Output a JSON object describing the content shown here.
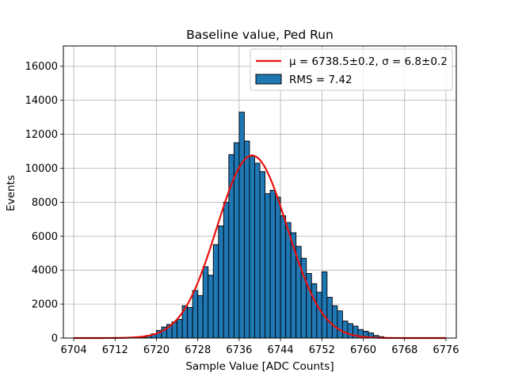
{
  "chart_data": {
    "type": "bar",
    "title": "Baseline value, Ped Run",
    "xlabel": "Sample Value [ADC Counts]",
    "ylabel": "Events",
    "xlim": [
      6702,
      6778
    ],
    "ylim": [
      0,
      17200
    ],
    "xticks": [
      6704,
      6712,
      6720,
      6728,
      6736,
      6744,
      6752,
      6760,
      6768,
      6776
    ],
    "yticks": [
      0,
      2000,
      4000,
      6000,
      8000,
      10000,
      12000,
      14000,
      16000
    ],
    "grid": true,
    "legend_position": "top-right",
    "bin_width": 1,
    "histogram": {
      "name": "RMS = 7.42",
      "color": "#1f77b4",
      "edge_color": "#000000",
      "bin_left_edges": [
        6717,
        6718,
        6719,
        6720,
        6721,
        6722,
        6723,
        6724,
        6725,
        6726,
        6727,
        6728,
        6729,
        6730,
        6731,
        6732,
        6733,
        6734,
        6735,
        6736,
        6737,
        6738,
        6739,
        6740,
        6741,
        6742,
        6743,
        6744,
        6745,
        6746,
        6747,
        6748,
        6749,
        6750,
        6751,
        6752,
        6753,
        6754,
        6755,
        6756,
        6757,
        6758,
        6759,
        6760,
        6761,
        6762,
        6763
      ],
      "counts": [
        50,
        150,
        250,
        450,
        650,
        800,
        950,
        1100,
        1900,
        1800,
        2800,
        2500,
        4200,
        3700,
        5500,
        6600,
        8000,
        10800,
        11500,
        13300,
        11600,
        10700,
        10300,
        9800,
        8500,
        8700,
        8300,
        7200,
        6800,
        6200,
        5400,
        4700,
        3800,
        3200,
        2700,
        3900,
        2400,
        1900,
        1600,
        1000,
        850,
        700,
        500,
        400,
        300,
        150,
        80
      ]
    },
    "fit": {
      "name": "μ = 6738.5±0.2, σ = 6.8±0.2",
      "color": "#e8100d",
      "mu": 6738.5,
      "sigma": 6.8,
      "amplitude": 10750,
      "x_range": [
        6704,
        6776
      ]
    },
    "legend_entries": [
      "μ = 6738.5±0.2, σ = 6.8±0.2",
      "RMS = 7.42"
    ]
  }
}
